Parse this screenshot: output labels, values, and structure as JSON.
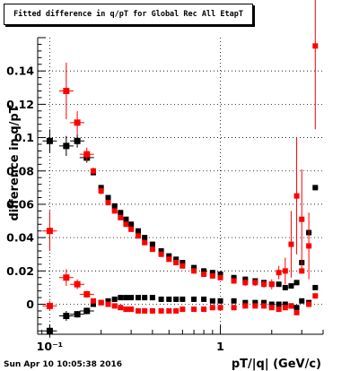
{
  "title": "Fitted difference in q/pT for Global Rec All EtapT",
  "timestamp": "Sun Apr 10 10:05:38 2016",
  "chart_data": {
    "type": "scatter",
    "title": "Fitted difference in q/pT for Global Rec All EtapT",
    "xlabel": "pT/|q| (GeV/c)",
    "ylabel": "difference in q/pT",
    "xscale": "log",
    "xlim": [
      0.085,
      4.0
    ],
    "ylim": [
      -0.018,
      0.16
    ],
    "x_ticks": [
      {
        "v": 0.1,
        "label": "10⁻¹"
      },
      {
        "v": 1,
        "label": "1"
      }
    ],
    "y_ticks": [
      0,
      0.02,
      0.04,
      0.06,
      0.08,
      0.1,
      0.12,
      0.14
    ],
    "grid": true,
    "series": [
      {
        "color": "#000000",
        "x": [
          0.1,
          0.125,
          0.145,
          0.165
        ],
        "y": [
          0.098,
          0.095,
          0.098,
          0.088
        ],
        "yerr": [
          0.007,
          0.006,
          0.004,
          0.003
        ]
      },
      {
        "color": "#ff0000",
        "x": [
          0.1,
          0.125,
          0.145,
          0.165
        ],
        "y": [
          0.044,
          0.128,
          0.109,
          0.09
        ],
        "yerr": [
          0.012,
          0.017,
          0.007,
          0.004
        ]
      },
      {
        "color": "#000000",
        "x": [
          0.1,
          0.125,
          0.145,
          0.165
        ],
        "y": [
          -0.016,
          -0.007,
          -0.006,
          -0.004
        ],
        "yerr": [
          0.004,
          0.003,
          0.002,
          0.002
        ]
      },
      {
        "color": "#ff0000",
        "x": [
          0.1,
          0.125,
          0.145,
          0.165
        ],
        "y": [
          -0.001,
          0.016,
          0.012,
          0.006
        ],
        "yerr": [
          0.003,
          0.005,
          0.003,
          0.002
        ]
      },
      {
        "color": "#000000",
        "marker": "square",
        "x": [
          0.18,
          0.2,
          0.22,
          0.24,
          0.26,
          0.28,
          0.3,
          0.33,
          0.36,
          0.4,
          0.45,
          0.5,
          0.55,
          0.6,
          0.7,
          0.8,
          0.9,
          1.0,
          1.2,
          1.4,
          1.6,
          1.8,
          2.0,
          2.2,
          2.4,
          2.6,
          2.8,
          3.0,
          3.3,
          3.6
        ],
        "y": [
          0.079,
          0.07,
          0.064,
          0.059,
          0.055,
          0.051,
          0.048,
          0.044,
          0.04,
          0.036,
          0.032,
          0.029,
          0.027,
          0.025,
          0.022,
          0.02,
          0.019,
          0.018,
          0.016,
          0.015,
          0.014,
          0.013,
          0.012,
          0.012,
          0.01,
          0.011,
          0.013,
          0.025,
          0.043,
          0.07
        ]
      },
      {
        "color": "#ff0000",
        "marker": "square",
        "x": [
          0.18,
          0.2,
          0.22,
          0.24,
          0.26,
          0.28,
          0.3,
          0.33,
          0.36,
          0.4,
          0.45,
          0.5,
          0.55,
          0.6,
          0.7,
          0.8,
          0.9,
          1.0,
          1.2,
          1.4,
          1.6,
          1.8,
          2.0,
          2.2,
          2.4,
          2.6,
          2.8,
          3.0,
          3.3,
          3.6
        ],
        "y": [
          0.08,
          0.068,
          0.061,
          0.056,
          0.052,
          0.048,
          0.045,
          0.041,
          0.037,
          0.033,
          0.03,
          0.027,
          0.025,
          0.023,
          0.02,
          0.018,
          0.017,
          0.016,
          0.014,
          0.013,
          0.013,
          0.012,
          0.012,
          0.019,
          0.02,
          0.036,
          0.065,
          0.051,
          0.035,
          0.155
        ],
        "yerr": [
          0.002,
          0.002,
          0.001,
          0.001,
          0.001,
          0.001,
          0.001,
          0.001,
          0.001,
          0.001,
          0.001,
          0.001,
          0.001,
          0.001,
          0.001,
          0.001,
          0.001,
          0.001,
          0.001,
          0.002,
          0.002,
          0.002,
          0.003,
          0.004,
          0.008,
          0.02,
          0.035,
          0.03,
          0.02,
          0.05
        ]
      },
      {
        "color": "#000000",
        "marker": "square",
        "x": [
          0.18,
          0.2,
          0.22,
          0.24,
          0.26,
          0.28,
          0.3,
          0.33,
          0.36,
          0.4,
          0.45,
          0.5,
          0.55,
          0.6,
          0.7,
          0.8,
          0.9,
          1.0,
          1.2,
          1.4,
          1.6,
          1.8,
          2.0,
          2.2,
          2.4,
          2.6,
          2.8,
          3.0,
          3.3,
          3.6
        ],
        "y": [
          0.0,
          0.001,
          0.002,
          0.003,
          0.004,
          0.004,
          0.004,
          0.004,
          0.004,
          0.004,
          0.003,
          0.003,
          0.003,
          0.003,
          0.003,
          0.003,
          0.002,
          0.002,
          0.002,
          0.001,
          0.001,
          0.001,
          0.0,
          0.0,
          0.0,
          -0.001,
          -0.002,
          0.002,
          0.001,
          0.01
        ]
      },
      {
        "color": "#ff0000",
        "marker": "square",
        "x": [
          0.18,
          0.2,
          0.22,
          0.24,
          0.26,
          0.28,
          0.3,
          0.33,
          0.36,
          0.4,
          0.45,
          0.5,
          0.55,
          0.6,
          0.7,
          0.8,
          0.9,
          1.0,
          1.2,
          1.4,
          1.6,
          1.8,
          2.0,
          2.2,
          2.4,
          2.6,
          2.8,
          3.0,
          3.3,
          3.6
        ],
        "y": [
          0.002,
          0.001,
          0.0,
          -0.001,
          -0.002,
          -0.003,
          -0.003,
          -0.004,
          -0.004,
          -0.004,
          -0.004,
          -0.004,
          -0.004,
          -0.003,
          -0.003,
          -0.003,
          -0.002,
          -0.002,
          -0.002,
          -0.001,
          -0.001,
          -0.001,
          -0.002,
          -0.003,
          -0.002,
          -0.001,
          -0.005,
          0.02,
          0.0,
          0.005
        ]
      }
    ]
  }
}
